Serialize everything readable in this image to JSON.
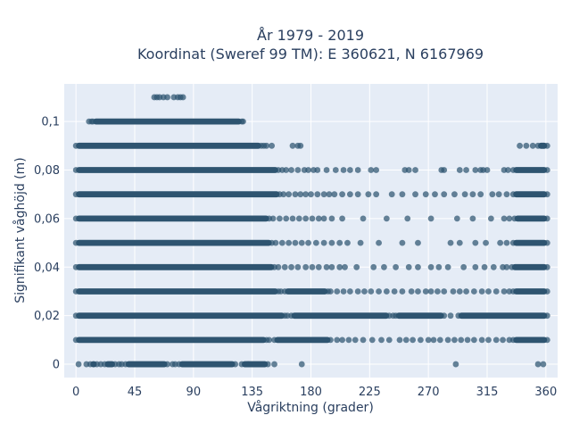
{
  "chart_data": {
    "type": "scatter",
    "title_line1": "År 1979 - 2019",
    "title_line2": "Koordinat (Sweref 99 TM): E 360621, N 6167969",
    "xlabel": "Vågriktning (grader)",
    "ylabel": "Signifikant våghöjd (m)",
    "xlim": [
      -9,
      369
    ],
    "ylim": [
      -0.0055,
      0.1155
    ],
    "x_ticks": [
      0,
      45,
      90,
      135,
      180,
      225,
      270,
      315,
      360
    ],
    "x_tick_labels": [
      "0",
      "45",
      "90",
      "135",
      "180",
      "225",
      "270",
      "315",
      "360"
    ],
    "y_ticks": [
      0,
      0.02,
      0.04,
      0.06,
      0.08,
      0.1
    ],
    "y_tick_labels": [
      "0",
      "0,02",
      "0,04",
      "0,06",
      "0,08",
      "0,1"
    ],
    "grid": true,
    "colors": {
      "marker": "#2e5470",
      "plot_bg": "#e5ecf6",
      "grid": "#ffffff",
      "text": "#2a3f5f"
    },
    "series": [
      {
        "bands": [
          {
            "y": 0.0,
            "dense": [
              [
                11,
                16
              ],
              [
                22,
                30
              ],
              [
                38,
                70
              ],
              [
                79,
                122
              ],
              [
                127,
                147
              ]
            ],
            "points": [
              2,
              8,
              19,
              33,
              35,
              74,
              76,
              132,
              152,
              173,
              291,
              354,
              358
            ]
          },
          {
            "y": 0.01,
            "dense": [
              [
                0,
                146
              ],
              [
                152,
                195
              ],
              [
                335,
                361
              ]
            ],
            "points": [
              148,
              200,
              204,
              209,
              214,
              220,
              227,
              234,
              240,
              248,
              253,
              258,
              264,
              270,
              274,
              279,
              285,
              290,
              295,
              300,
              305,
              311,
              316,
              322,
              327,
              332
            ]
          },
          {
            "y": 0.02,
            "dense": [
              [
                0,
                160
              ],
              [
                165,
                240
              ],
              [
                245,
                282
              ],
              [
                293,
                361
              ]
            ],
            "points": [
              162,
              243,
              287
            ]
          },
          {
            "y": 0.03,
            "dense": [
              [
                0,
                155
              ],
              [
                160,
                193
              ],
              [
                335,
                361
              ]
            ],
            "points": [
              157,
              195,
              200,
              205,
              210,
              216,
              221,
              226,
              232,
              238,
              244,
              250,
              257,
              262,
              268,
              272,
              277,
              282,
              289,
              294,
              299,
              305,
              311,
              316,
              322,
              328,
              332
            ]
          },
          {
            "y": 0.04,
            "dense": [
              [
                0,
                152
              ],
              [
                334,
                361
              ]
            ],
            "points": [
              155,
              160,
              165,
              170,
              176,
              181,
              186,
              192,
              196,
              202,
              206,
              215,
              228,
              236,
              245,
              255,
              262,
              272,
              278,
              285,
              297,
              306,
              313,
              320,
              327,
              330
            ]
          },
          {
            "y": 0.05,
            "dense": [
              [
                0,
                150
              ],
              [
                335,
                361
              ]
            ],
            "points": [
              153,
              158,
              163,
              168,
              173,
              178,
              184,
              190,
              196,
              202,
              208,
              218,
              232,
              250,
              262,
              287,
              294,
              306,
              314,
              325,
              330
            ]
          },
          {
            "y": 0.06,
            "dense": [
              [
                0,
                148
              ],
              [
                336,
                361
              ]
            ],
            "points": [
              151,
              156,
              161,
              166,
              171,
              176,
              181,
              186,
              190,
              196,
              204,
              220,
              238,
              254,
              272,
              292,
              304,
              318,
              328,
              332
            ]
          },
          {
            "y": 0.07,
            "dense": [
              [
                0,
                156
              ],
              [
                335,
                361
              ]
            ],
            "points": [
              159,
              163,
              168,
              172,
              176,
              180,
              185,
              190,
              194,
              198,
              204,
              210,
              216,
              224,
              230,
              242,
              250,
              260,
              268,
              275,
              282,
              290,
              298,
              304,
              310,
              319,
              324,
              330
            ]
          },
          {
            "y": 0.08,
            "dense": [
              [
                0,
                155
              ],
              [
                335,
                361
              ]
            ],
            "points": [
              158,
              161,
              165,
              170,
              175,
              178,
              182,
              185,
              192,
              199,
              205,
              210,
              216,
              226,
              230,
              252,
              255,
              260,
              280,
              282,
              294,
              299,
              306,
              310,
              312,
              315,
              328,
              331
            ]
          },
          {
            "y": 0.09,
            "dense": [
              [
                0,
                142
              ],
              [
                354,
                361
              ]
            ],
            "points": [
              144,
              146,
              150,
              166,
              170,
              172,
              340,
              345,
              350
            ]
          },
          {
            "y": 0.1,
            "dense": [
              [
                13,
                127
              ]
            ],
            "points": [
              10,
              12,
              128
            ]
          },
          {
            "y": 0.11,
            "dense": [],
            "points": [
              60,
              62,
              64,
              67,
              70,
              75,
              78,
              80,
              82
            ]
          }
        ]
      }
    ]
  }
}
